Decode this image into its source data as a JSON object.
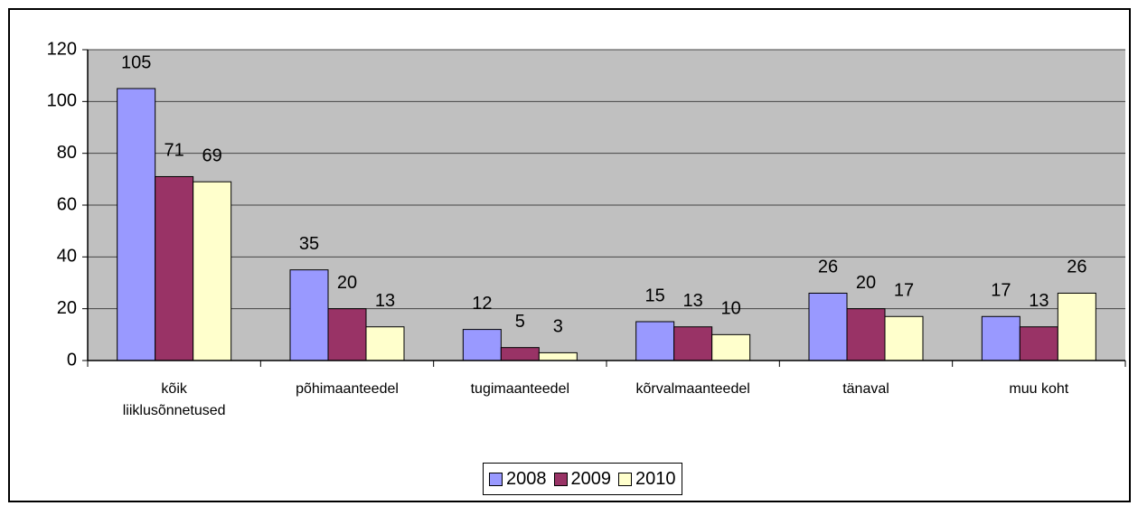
{
  "chart_data": {
    "type": "bar",
    "categories": [
      "kõik liiklusõnnetused",
      "põhimaanteedel",
      "tugimaanteedel",
      "kõrvalmaanteedel",
      "tänaval",
      "muu koht"
    ],
    "series": [
      {
        "name": "2008",
        "color": "#9999ff",
        "values": [
          105,
          35,
          12,
          15,
          26,
          17
        ]
      },
      {
        "name": "2009",
        "color": "#993366",
        "values": [
          71,
          20,
          5,
          13,
          20,
          13
        ]
      },
      {
        "name": "2010",
        "color": "#ffffcc",
        "values": [
          69,
          13,
          3,
          10,
          17,
          26
        ]
      }
    ],
    "ylim": [
      0,
      120
    ],
    "yticks": [
      0,
      20,
      40,
      60,
      80,
      100,
      120
    ],
    "grid": true,
    "legend": "bottom"
  }
}
